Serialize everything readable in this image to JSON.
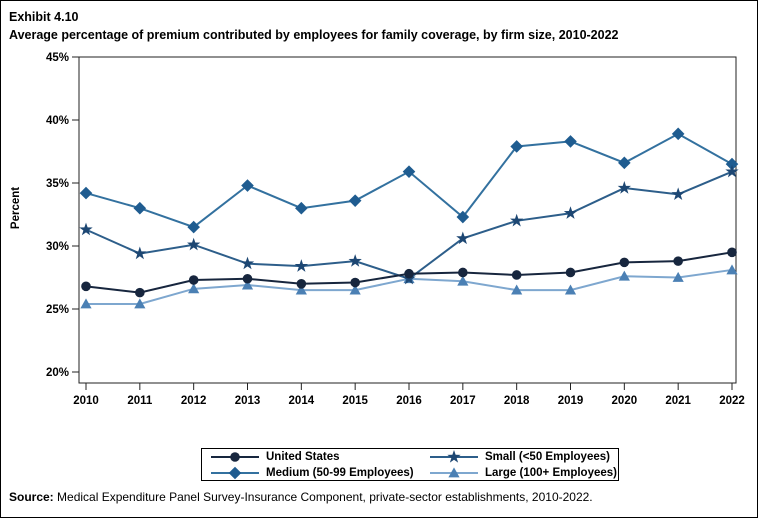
{
  "header": {
    "exhibit": "Exhibit 4.10",
    "title": "Average percentage of premium contributed by employees for family coverage, by firm size, 2010-2022"
  },
  "footer": {
    "source_label": "Source:",
    "source_text": " Medical Expenditure Panel Survey-Insurance Component, private-sector establishments, 2010-2022."
  },
  "chart_data": {
    "type": "line",
    "title": "Average percentage of premium contributed by employees for family coverage, by firm size, 2010-2022",
    "xlabel": "",
    "ylabel": "Percent",
    "ylim": [
      20,
      45
    ],
    "ytick_values": [
      45,
      40,
      35,
      30,
      25,
      20
    ],
    "ytick_labels": [
      "45%",
      "40%",
      "35%",
      "30%",
      "25%",
      "20%"
    ],
    "grid": false,
    "legend_position": "bottom",
    "x": [
      "2010",
      "2011",
      "2012",
      "2013",
      "2014",
      "2015",
      "2016",
      "2017",
      "2018",
      "2019",
      "2020",
      "2021",
      "2022"
    ],
    "series": [
      {
        "name": "United States",
        "marker": "circle",
        "marker_color": "#17263e",
        "line_color": "#17263e",
        "values": [
          26.8,
          26.3,
          27.3,
          27.4,
          27.0,
          27.1,
          27.8,
          27.9,
          27.7,
          27.9,
          28.7,
          28.8,
          29.5
        ]
      },
      {
        "name": "Small (<50 Employees)",
        "marker": "star",
        "marker_color": "#1d4773",
        "line_color": "#2d5e8a",
        "values": [
          31.3,
          29.4,
          30.1,
          28.6,
          28.4,
          28.8,
          27.4,
          30.6,
          32.0,
          32.6,
          34.6,
          34.1,
          35.9
        ]
      },
      {
        "name": "Medium (50-99 Employees)",
        "marker": "diamond",
        "marker_color": "#1f5c90",
        "line_color": "#33719f",
        "values": [
          34.2,
          33.0,
          31.5,
          34.8,
          33.0,
          33.6,
          35.9,
          32.3,
          37.9,
          38.3,
          36.6,
          38.9,
          36.5
        ]
      },
      {
        "name": "Large (100+ Employees)",
        "marker": "triangle",
        "marker_color": "#4b80b4",
        "line_color": "#7ea7cf",
        "values": [
          25.4,
          25.4,
          26.6,
          26.9,
          26.5,
          26.5,
          27.4,
          27.2,
          26.5,
          26.5,
          27.6,
          27.5,
          28.1
        ]
      }
    ]
  }
}
